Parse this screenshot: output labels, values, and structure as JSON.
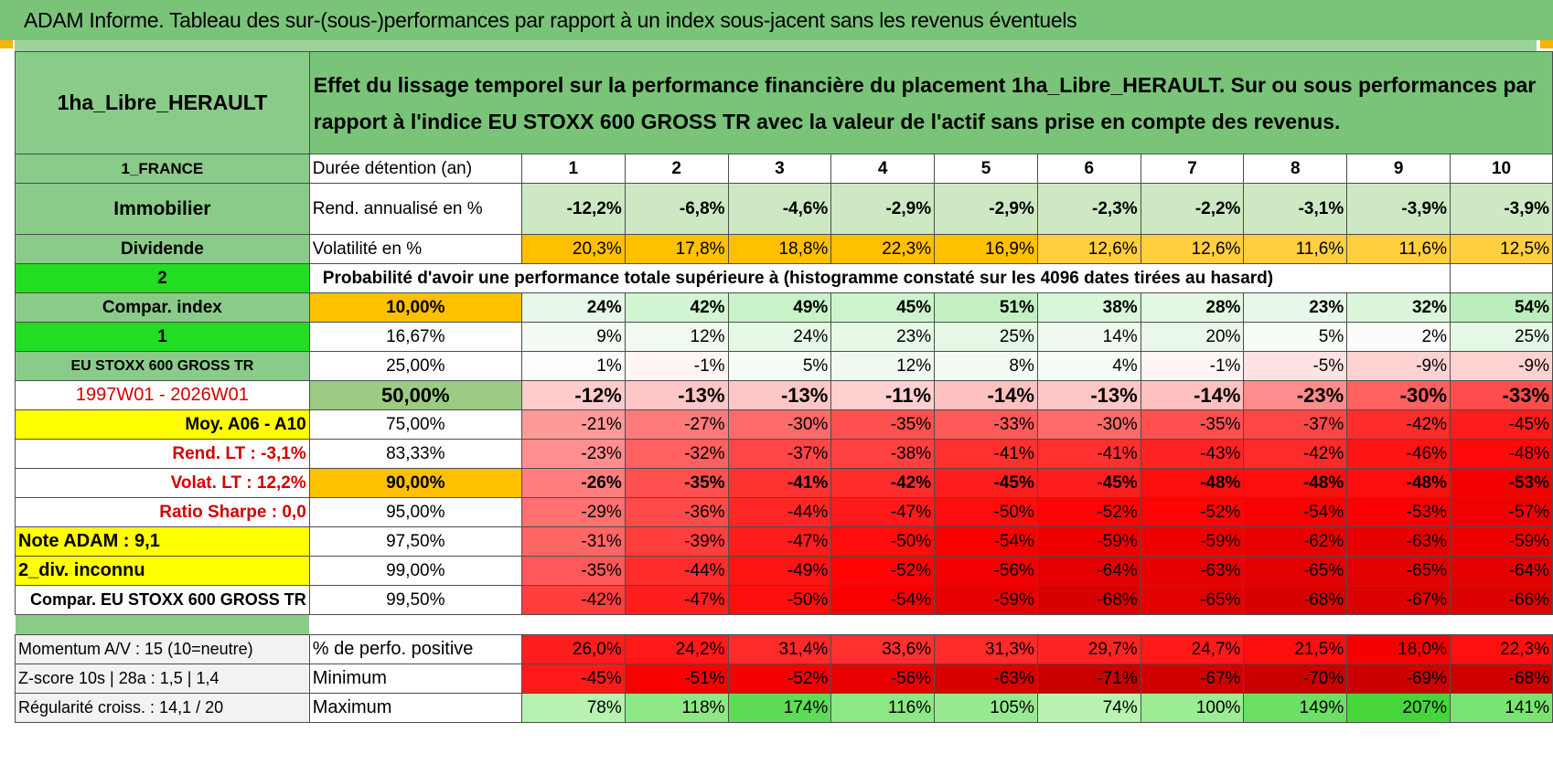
{
  "banner_title": "ADAM Informe. Tableau des sur-(sous-)performances par rapport à un index sous-jacent sans les revenus éventuels",
  "asset_name": "1ha_Libre_HERAULT",
  "description": "Effet du lissage temporel sur la performance financière du placement 1ha_Libre_HERAULT. Sur ou sous performances par rapport à l'indice EU STOXX 600 GROSS TR avec la valeur de l'actif sans prise en compte des revenus.",
  "left": {
    "country": "1_FRANCE",
    "category": "Immobilier",
    "subcategory": "Dividende",
    "selector_a": "2",
    "compar_index": "Compar. index",
    "selector_b": "1",
    "index_name": "EU STOXX 600 GROSS TR",
    "period": "1997W01 - 2026W01",
    "moy": "Moy. A06 - A10",
    "rend_lt": "Rend. LT :    -3,1%",
    "volat_lt": "Volat. LT :    12,2%",
    "sharpe": "Ratio Sharpe :     0,0",
    "note": "Note ADAM : 9,1",
    "div": "2_div. inconnu",
    "compar": "Compar. EU STOXX 600 GROSS TR",
    "momentum": "Momentum A/V : 15 (10=neutre)",
    "zscore": "Z-score 10s | 28a : 1,5 | 1,4",
    "regularite": "Régularité croiss. : 14,1 / 20"
  },
  "header_row": {
    "label": "Durée détention (an)",
    "years": [
      "1",
      "2",
      "3",
      "4",
      "5",
      "6",
      "7",
      "8",
      "9",
      "10"
    ]
  },
  "rend_row": {
    "label": "Rend. annualisé en %",
    "values": [
      "-12,2%",
      "-6,8%",
      "-4,6%",
      "-2,9%",
      "-2,9%",
      "-2,3%",
      "-2,2%",
      "-3,1%",
      "-3,9%",
      "-3,9%"
    ]
  },
  "vol_row": {
    "label": "Volatilité en %",
    "values": [
      "20,3%",
      "17,8%",
      "18,8%",
      "22,3%",
      "16,9%",
      "12,6%",
      "12,6%",
      "11,6%",
      "11,6%",
      "12,5%"
    ]
  },
  "prob_title": "Probabilité d'avoir une performance totale supérieure à (histogramme constaté sur les 4096 dates tirées au hasard)",
  "prob_rows": [
    {
      "pct": "10,00%",
      "values": [
        "24%",
        "42%",
        "49%",
        "45%",
        "51%",
        "38%",
        "28%",
        "23%",
        "32%",
        "54%"
      ]
    },
    {
      "pct": "16,67%",
      "values": [
        "9%",
        "12%",
        "24%",
        "23%",
        "25%",
        "14%",
        "20%",
        "5%",
        "2%",
        "25%"
      ]
    },
    {
      "pct": "25,00%",
      "values": [
        "1%",
        "-1%",
        "5%",
        "12%",
        "8%",
        "4%",
        "-1%",
        "-5%",
        "-9%",
        "-9%"
      ]
    },
    {
      "pct": "50,00%",
      "values": [
        "-12%",
        "-13%",
        "-13%",
        "-11%",
        "-14%",
        "-13%",
        "-14%",
        "-23%",
        "-30%",
        "-33%"
      ]
    },
    {
      "pct": "75,00%",
      "values": [
        "-21%",
        "-27%",
        "-30%",
        "-35%",
        "-33%",
        "-30%",
        "-35%",
        "-37%",
        "-42%",
        "-45%"
      ]
    },
    {
      "pct": "83,33%",
      "values": [
        "-23%",
        "-32%",
        "-37%",
        "-38%",
        "-41%",
        "-41%",
        "-43%",
        "-42%",
        "-46%",
        "-48%"
      ]
    },
    {
      "pct": "90,00%",
      "values": [
        "-26%",
        "-35%",
        "-41%",
        "-42%",
        "-45%",
        "-45%",
        "-48%",
        "-48%",
        "-48%",
        "-53%"
      ]
    },
    {
      "pct": "95,00%",
      "values": [
        "-29%",
        "-36%",
        "-44%",
        "-47%",
        "-50%",
        "-52%",
        "-52%",
        "-54%",
        "-53%",
        "-57%"
      ]
    },
    {
      "pct": "97,50%",
      "values": [
        "-31%",
        "-39%",
        "-47%",
        "-50%",
        "-54%",
        "-59%",
        "-59%",
        "-62%",
        "-63%",
        "-59%"
      ]
    },
    {
      "pct": "99,00%",
      "values": [
        "-35%",
        "-44%",
        "-49%",
        "-52%",
        "-56%",
        "-64%",
        "-63%",
        "-65%",
        "-65%",
        "-64%"
      ]
    },
    {
      "pct": "99,50%",
      "values": [
        "-42%",
        "-47%",
        "-50%",
        "-54%",
        "-59%",
        "-68%",
        "-65%",
        "-68%",
        "-67%",
        "-66%"
      ]
    }
  ],
  "stats_rows": [
    {
      "label": "% de perfo. positive",
      "values": [
        "26,0%",
        "24,2%",
        "31,4%",
        "33,6%",
        "31,3%",
        "29,7%",
        "24,7%",
        "21,5%",
        "18,0%",
        "22,3%"
      ]
    },
    {
      "label": "Minimum",
      "values": [
        "-45%",
        "-51%",
        "-52%",
        "-56%",
        "-63%",
        "-71%",
        "-67%",
        "-70%",
        "-69%",
        "-68%"
      ]
    },
    {
      "label": "Maximum",
      "values": [
        "78%",
        "118%",
        "174%",
        "116%",
        "105%",
        "74%",
        "100%",
        "149%",
        "207%",
        "141%"
      ]
    }
  ],
  "colors": {
    "banner_green": "#7ac47a",
    "label_green": "#8acb8a",
    "bright_green": "#22dd22",
    "yellow": "#ffff00",
    "orange": "#ffc000",
    "red_text": "#d40000"
  }
}
